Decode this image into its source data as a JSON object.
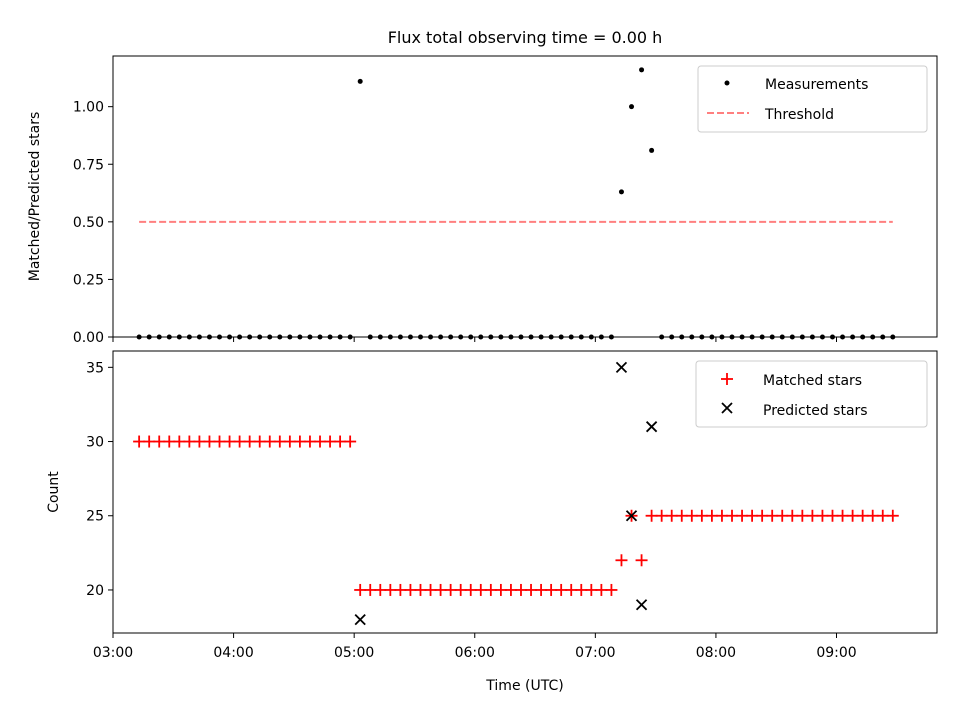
{
  "chart_data": [
    {
      "type": "scatter",
      "title": "Flux total observing time = 0.00 h",
      "xlabel": "",
      "ylabel": "Matched/Predicted stars",
      "xlim": [
        "03:00",
        "09:50"
      ],
      "ylim": [
        0,
        1.22
      ],
      "yticks": [
        0.0,
        0.25,
        0.5,
        0.75,
        1.0
      ],
      "ytick_labels": [
        "0.00",
        "0.25",
        "0.50",
        "0.75",
        "1.00"
      ],
      "xtick_labels_visible": false,
      "legend_position": "top-right",
      "grid": false,
      "series": [
        {
          "name": "Measurements",
          "kind": "scatter",
          "marker": "dot",
          "color": "#000000",
          "points": [
            [
              "05:03",
              1.11
            ],
            [
              "07:13",
              0.63
            ],
            [
              "07:18",
              1.0
            ],
            [
              "07:23",
              1.16
            ],
            [
              "07:28",
              0.81
            ]
          ],
          "zero_runs": [
            {
              "start": "03:13",
              "end": "04:58",
              "step_min": 5
            },
            {
              "start": "05:08",
              "end": "07:08",
              "step_min": 5
            },
            {
              "start": "07:33",
              "end": "09:28",
              "step_min": 5
            }
          ]
        },
        {
          "name": "Threshold",
          "kind": "line",
          "style": "dashed",
          "color": "#ff7f7f",
          "x": [
            "03:13",
            "09:28"
          ],
          "y": [
            0.5,
            0.5
          ]
        }
      ]
    },
    {
      "type": "scatter",
      "title": "",
      "xlabel": "Time (UTC)",
      "ylabel": "Count",
      "xlim": [
        "03:00",
        "09:50"
      ],
      "ylim": [
        17.1,
        36.1
      ],
      "yticks": [
        20,
        25,
        30,
        35
      ],
      "xticks": [
        "03:00",
        "04:00",
        "05:00",
        "06:00",
        "07:00",
        "08:00",
        "09:00"
      ],
      "legend_position": "top-right",
      "grid": false,
      "series": [
        {
          "name": "Matched stars",
          "kind": "scatter",
          "marker": "plus",
          "color": "#ff0000",
          "runs": [
            {
              "start": "03:13",
              "end": "04:58",
              "step_min": 5,
              "value": 30
            },
            {
              "start": "05:03",
              "end": "07:08",
              "step_min": 5,
              "value": 20
            },
            {
              "start": "07:13",
              "end": "07:13",
              "step_min": 5,
              "value": 22
            },
            {
              "start": "07:18",
              "end": "07:18",
              "step_min": 5,
              "value": 25
            },
            {
              "start": "07:23",
              "end": "07:23",
              "step_min": 5,
              "value": 22
            },
            {
              "start": "07:28",
              "end": "09:28",
              "step_min": 5,
              "value": 25
            }
          ]
        },
        {
          "name": "Predicted stars",
          "kind": "scatter",
          "marker": "x",
          "color": "#000000",
          "points": [
            [
              "05:03",
              18
            ],
            [
              "07:13",
              35
            ],
            [
              "07:18",
              25
            ],
            [
              "07:23",
              19
            ],
            [
              "07:28",
              31
            ]
          ]
        }
      ]
    }
  ]
}
